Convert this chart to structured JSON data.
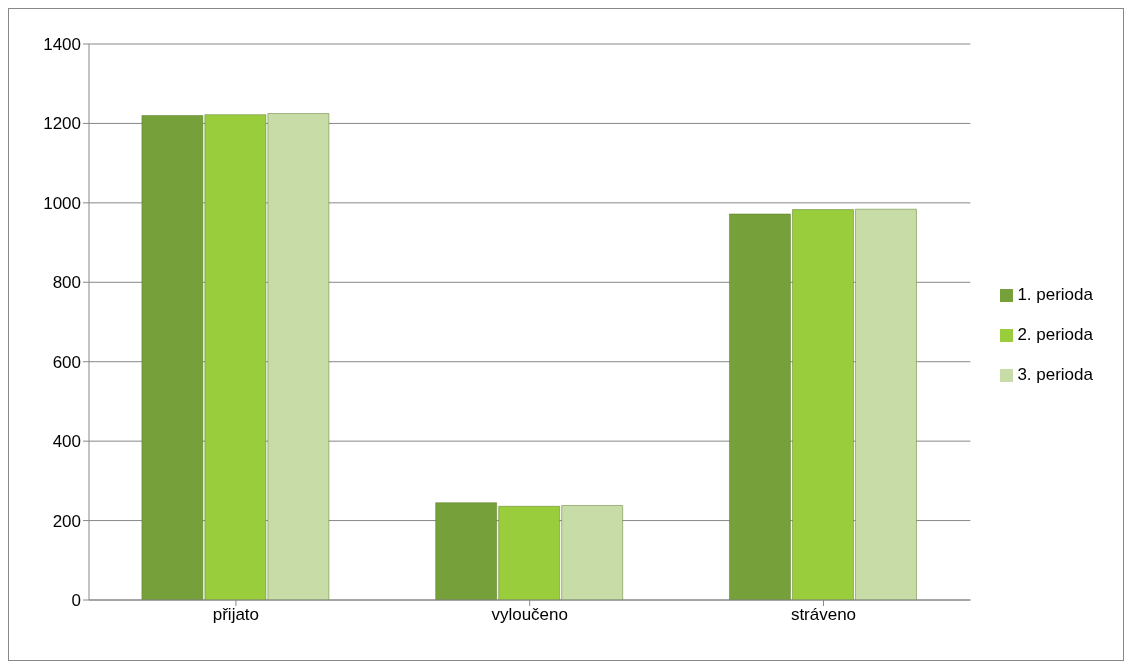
{
  "chart_data": {
    "type": "bar",
    "categories": [
      "přijato",
      "vyloučeno",
      "stráveno"
    ],
    "series": [
      {
        "name": "1. perioda",
        "color": "#76a03a",
        "values": [
          1220,
          245,
          972
        ]
      },
      {
        "name": "2. perioda",
        "color": "#9acd3c",
        "values": [
          1222,
          236,
          983
        ]
      },
      {
        "name": "3. perioda",
        "color": "#c8dca8",
        "values": [
          1225,
          238,
          984
        ]
      }
    ],
    "ylim": [
      0,
      1400
    ],
    "yticks": [
      0,
      200,
      400,
      600,
      800,
      1000,
      1200,
      1400
    ],
    "grid": "y",
    "legend": "right"
  }
}
